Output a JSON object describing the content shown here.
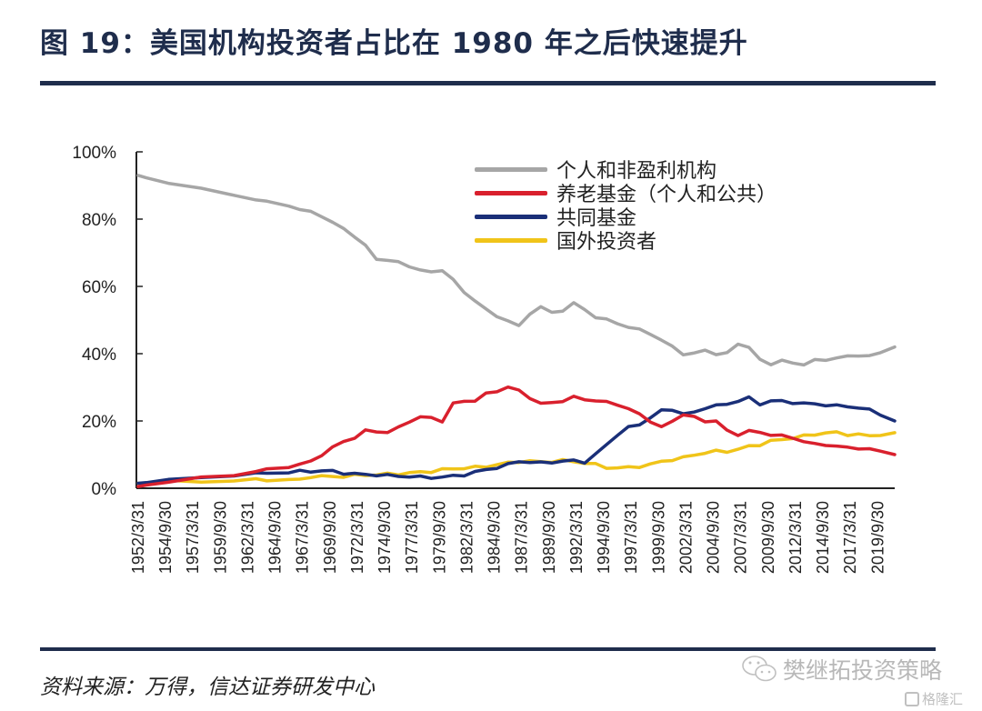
{
  "header": {
    "title": "图 19：美国机构投资者占比在 1980 年之后快速提升"
  },
  "footer": {
    "source": "资料来源：万得，信达证券研发中心",
    "watermark": "樊继拓投资策略",
    "brand": "格隆汇"
  },
  "chart_data": {
    "type": "line",
    "title": "美国机构投资者占比在 1980 年之后快速提升",
    "xlabel": "",
    "ylabel": "",
    "ylim": [
      0,
      100
    ],
    "xlim": [
      1952.25,
      2021.3
    ],
    "y_ticks": [
      "0%",
      "20%",
      "40%",
      "60%",
      "80%",
      "100%"
    ],
    "y_tick_values": [
      0,
      20,
      40,
      60,
      80,
      100
    ],
    "x_tick_labels": [
      "1952/3/31",
      "1954/9/30",
      "1957/3/31",
      "1959/9/30",
      "1962/3/31",
      "1964/9/30",
      "1967/3/31",
      "1969/9/30",
      "1972/3/31",
      "1974/9/30",
      "1977/3/31",
      "1979/9/30",
      "1982/3/31",
      "1984/9/30",
      "1987/3/31",
      "1989/9/30",
      "1992/3/31",
      "1994/9/30",
      "1997/3/31",
      "1999/9/30",
      "2002/3/31",
      "2004/9/30",
      "2007/3/31",
      "2009/9/30",
      "2012/3/31",
      "2014/9/30",
      "2017/3/31",
      "2019/9/30"
    ],
    "x_tick_values": [
      1952.25,
      1954.75,
      1957.25,
      1959.75,
      1962.25,
      1964.75,
      1967.25,
      1969.75,
      1972.25,
      1974.75,
      1977.25,
      1979.75,
      1982.25,
      1984.75,
      1987.25,
      1989.75,
      1992.25,
      1994.75,
      1997.25,
      1999.75,
      2002.25,
      2004.75,
      2007.25,
      2009.75,
      2012.25,
      2014.75,
      2017.25,
      2019.75
    ],
    "grid": false,
    "legend_position": "top-right",
    "series": [
      {
        "name": "个人和非盈利机构",
        "color": "#a6a6a6",
        "x": [
          1952.25,
          1953,
          1955,
          1958,
          1961,
          1963,
          1964,
          1966,
          1967,
          1968,
          1969,
          1970,
          1971,
          1972,
          1973,
          1974,
          1975,
          1976,
          1977,
          1978,
          1979,
          1980,
          1981,
          1982,
          1983,
          1984,
          1985,
          1986,
          1987,
          1988,
          1989,
          1990,
          1991,
          1992,
          1993,
          1994,
          1995,
          1996,
          1997,
          1998,
          1999,
          2000,
          2001,
          2002,
          2003,
          2004,
          2005,
          2006,
          2007,
          2008,
          2009,
          2010,
          2011,
          2012,
          2013,
          2014,
          2015,
          2016,
          2017,
          2018,
          2019,
          2020,
          2021.3
        ],
        "values": [
          93,
          92,
          91,
          89,
          87,
          86,
          85,
          84,
          83,
          82,
          81,
          79,
          77,
          75,
          72,
          68,
          68,
          67,
          66,
          65,
          64,
          65,
          62,
          58,
          56,
          53,
          51,
          50,
          48,
          52,
          54,
          52,
          53,
          55,
          53,
          51,
          50,
          49,
          48,
          47,
          46,
          44,
          42,
          40,
          40,
          41,
          40,
          40,
          43,
          42,
          38,
          37,
          38,
          37,
          37,
          38,
          38,
          39,
          39,
          39.5,
          39.5,
          40,
          42
        ]
      },
      {
        "name": "养老基金（个人和公共）",
        "color": "#d9202d",
        "x": [
          1952.25,
          1953,
          1955,
          1958,
          1961,
          1963,
          1964,
          1966,
          1967,
          1968,
          1969,
          1970,
          1971,
          1972,
          1973,
          1974,
          1975,
          1976,
          1977,
          1978,
          1979,
          1980,
          1981,
          1982,
          1983,
          1984,
          1985,
          1986,
          1987,
          1988,
          1989,
          1990,
          1991,
          1992,
          1993,
          1994,
          1995,
          1996,
          1997,
          1998,
          1999,
          2000,
          2001,
          2002,
          2003,
          2004,
          2005,
          2006,
          2007,
          2008,
          2009,
          2010,
          2011,
          2012,
          2013,
          2014,
          2015,
          2016,
          2017,
          2018,
          2019,
          2020,
          2021.3
        ],
        "values": [
          0.5,
          1,
          2,
          3,
          4,
          5,
          5.5,
          6.5,
          7,
          8,
          10,
          12,
          14,
          15,
          17,
          17,
          16.5,
          18,
          20,
          21,
          21,
          20,
          25,
          26,
          26,
          28,
          29,
          30,
          29,
          27,
          25,
          25.5,
          26,
          27,
          26.5,
          26,
          25.5,
          25,
          23.5,
          22,
          20,
          18,
          20,
          22,
          21,
          20,
          20,
          17,
          16,
          17,
          16.5,
          16,
          15.5,
          15,
          14,
          13,
          13,
          12.5,
          12,
          12,
          11.5,
          11,
          10
        ]
      },
      {
        "name": "共同基金",
        "color": "#1a2f78",
        "x": [
          1952.25,
          1953,
          1955,
          1958,
          1961,
          1963,
          1964,
          1966,
          1967,
          1968,
          1969,
          1970,
          1971,
          1972,
          1973,
          1974,
          1975,
          1976,
          1977,
          1978,
          1979,
          1980,
          1981,
          1982,
          1983,
          1984,
          1985,
          1986,
          1987,
          1988,
          1989,
          1990,
          1991,
          1992,
          1993,
          1994,
          1995,
          1996,
          1997,
          1998,
          1999,
          2000,
          2001,
          2002,
          2003,
          2004,
          2005,
          2006,
          2007,
          2008,
          2009,
          2010,
          2011,
          2012,
          2013,
          2014,
          2015,
          2016,
          2017,
          2018,
          2019,
          2020,
          2021.3
        ],
        "values": [
          1.5,
          2,
          2.5,
          3,
          4,
          4.3,
          4.5,
          4.8,
          5,
          5,
          5.2,
          5,
          4.5,
          4.3,
          4,
          4,
          3.8,
          3.6,
          3.5,
          3.3,
          3.2,
          3.3,
          3.6,
          4,
          4.8,
          5.5,
          6.2,
          7,
          8,
          7.8,
          7.5,
          7.8,
          8,
          8.2,
          7.8,
          10,
          13,
          16,
          18,
          19,
          21,
          23,
          23.5,
          22,
          22.5,
          24,
          24.5,
          25,
          26,
          26.8,
          25,
          26,
          25.8,
          25.5,
          25.2,
          25,
          24.8,
          24.5,
          24.3,
          24,
          23.2,
          22,
          20
        ]
      },
      {
        "name": "国外投资者",
        "color": "#f0c419",
        "x": [
          1952.25,
          1953,
          1955,
          1958,
          1961,
          1963,
          1964,
          1966,
          1967,
          1968,
          1969,
          1970,
          1971,
          1972,
          1973,
          1974,
          1975,
          1976,
          1977,
          1978,
          1979,
          1980,
          1981,
          1982,
          1983,
          1984,
          1985,
          1986,
          1987,
          1988,
          1989,
          1990,
          1991,
          1992,
          1993,
          1994,
          1995,
          1996,
          1997,
          1998,
          1999,
          2000,
          2001,
          2002,
          2003,
          2004,
          2005,
          2006,
          2007,
          2008,
          2009,
          2010,
          2011,
          2012,
          2013,
          2014,
          2015,
          2016,
          2017,
          2018,
          2019,
          2020,
          2021.3
        ],
        "values": [
          1.5,
          1.8,
          2,
          2,
          2.3,
          2.5,
          2.5,
          2.5,
          2.5,
          3.5,
          3.5,
          3.5,
          3.5,
          3.8,
          4,
          4,
          4.2,
          4.3,
          4.5,
          4.8,
          5,
          5.5,
          5.8,
          6,
          6.2,
          6.5,
          7,
          7.5,
          8,
          8,
          7.8,
          8,
          8.2,
          8,
          7.5,
          7,
          6.2,
          6,
          6.2,
          6.5,
          7,
          8,
          8.5,
          9,
          10,
          10.5,
          11,
          11,
          11.5,
          12.5,
          13,
          14,
          14.5,
          15,
          15.5,
          16,
          16.5,
          16.5,
          16,
          16,
          15.5,
          16,
          16.5
        ]
      }
    ]
  }
}
